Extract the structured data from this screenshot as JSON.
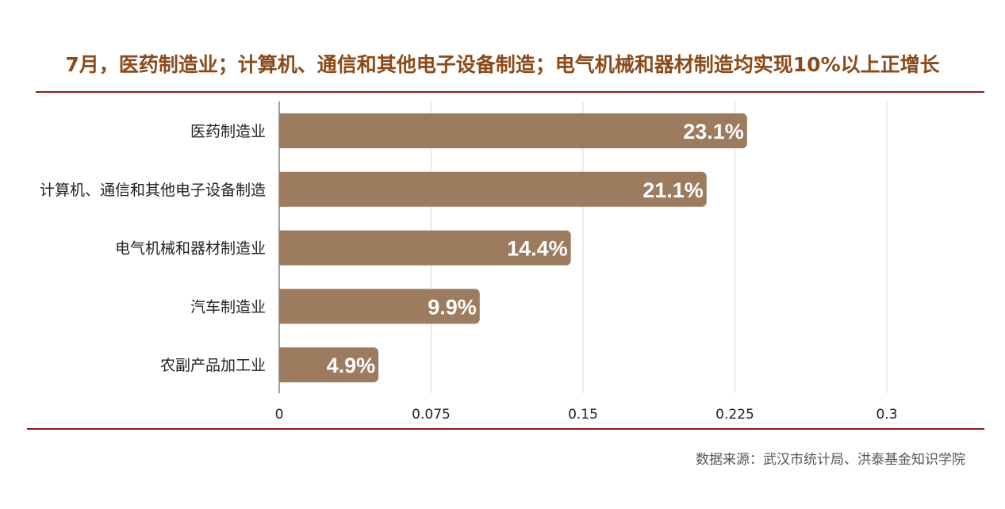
{
  "title": "7月，医药制造业；计算机、通信和其他电子设备制造；电气机械和器材制造均实现10%以上正增长",
  "source": "数据来源：武汉市统计局、洪泰基金知识学院",
  "colors": {
    "bar": "#9c7b5f",
    "title": "#8a4a1a",
    "rule": "#8b1a1a",
    "grid": "#d9d9d9"
  },
  "chart_data": {
    "type": "bar",
    "orientation": "horizontal",
    "categories": [
      "医药制造业",
      "计算机、通信和其他电子设备制造",
      "电气机械和器材制造业",
      "汽车制造业",
      "农副产品加工业"
    ],
    "values": [
      0.231,
      0.211,
      0.144,
      0.099,
      0.049
    ],
    "data_labels": [
      "23.1%",
      "21.1%",
      "14.4%",
      "9.9%",
      "4.9%"
    ],
    "xticks": [
      "0",
      "0.075",
      "0.15",
      "0.225",
      "0.3"
    ],
    "xtick_values": [
      0,
      0.075,
      0.15,
      0.225,
      0.3
    ],
    "xlim": [
      0,
      0.3
    ],
    "grid": true,
    "legend": "none"
  }
}
